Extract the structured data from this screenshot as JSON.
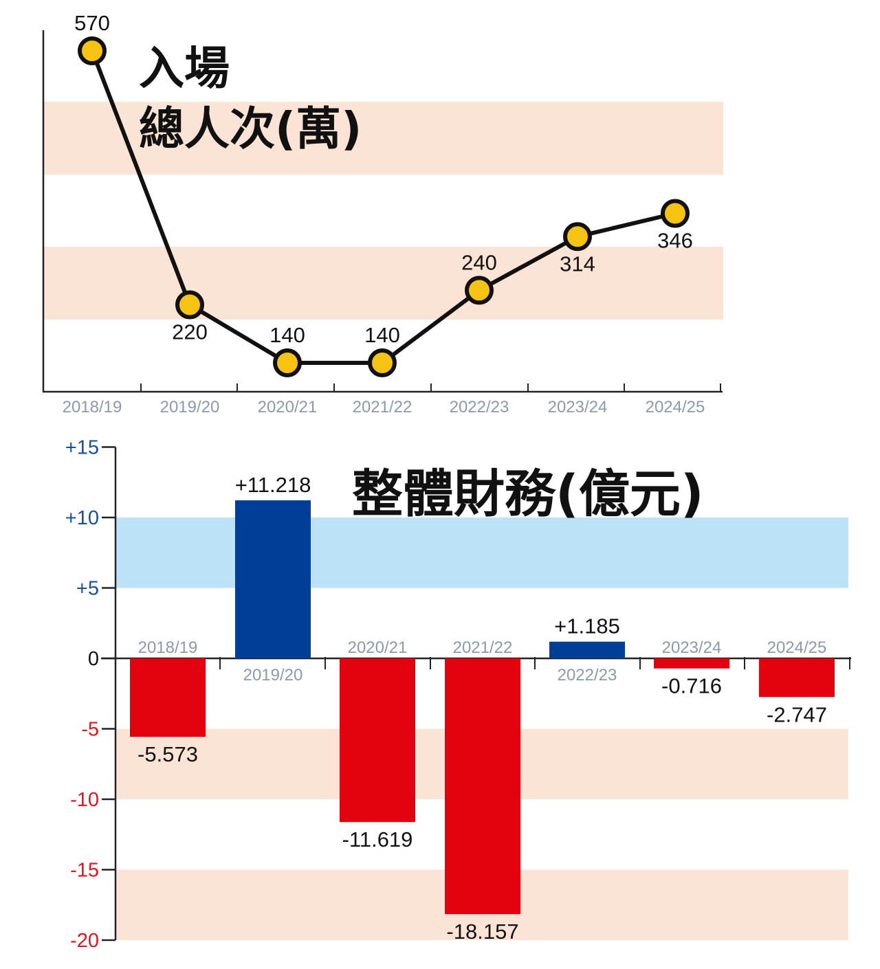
{
  "chart_data": [
    {
      "type": "line",
      "title_lines": [
        "入場",
        "總人次(萬)"
      ],
      "categories": [
        "2018/19",
        "2019/20",
        "2020/21",
        "2021/22",
        "2022/23",
        "2023/24",
        "2024/25"
      ],
      "values": [
        570,
        220,
        140,
        140,
        240,
        314,
        346
      ],
      "value_labels": [
        "570",
        "220",
        "140",
        "140",
        "240",
        "314",
        "346"
      ],
      "ylim": [
        100,
        600
      ],
      "grid": false,
      "colors": {
        "line": "#111111",
        "marker": "#f7c313",
        "band": "#fbe3d6"
      }
    },
    {
      "type": "bar",
      "title": "整體財務(億元)",
      "categories": [
        "2018/19",
        "2019/20",
        "2020/21",
        "2021/22",
        "2022/23",
        "2023/24",
        "2024/25"
      ],
      "values": [
        -5.573,
        11.218,
        -11.619,
        -18.157,
        1.185,
        -0.716,
        -2.747
      ],
      "value_labels": [
        "-5.573",
        "+11.218",
        "-11.619",
        "-18.157",
        "+1.185",
        "-0.716",
        "-2.747"
      ],
      "ylim": [
        -20,
        15
      ],
      "yticks": [
        15,
        10,
        5,
        0,
        -5,
        -10,
        -15,
        -20
      ],
      "ytick_labels": [
        "+15",
        "+10",
        "+5",
        "0",
        "-5",
        "-10",
        "-15",
        "-20"
      ],
      "grid": false,
      "colors": {
        "positive": "#003f98",
        "negative": "#e3000f",
        "pos_band": "#bde2f8",
        "neg_band": "#fbe3d6",
        "pos_label": "#1b4f9a",
        "neg_label": "#e0141e"
      }
    }
  ]
}
